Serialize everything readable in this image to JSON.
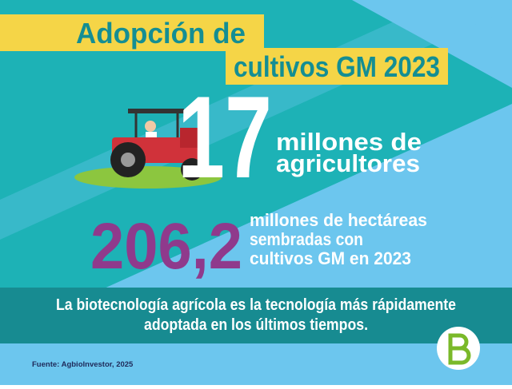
{
  "header": {
    "title_lines": [
      "Adopción de",
      "cultivos GM 2023"
    ]
  },
  "stat_farmers": {
    "number": "17",
    "label_lines": [
      "millones de",
      "agricultores"
    ]
  },
  "stat_hectares": {
    "number": "206,2",
    "label_lines": [
      "millones de hectáreas",
      "sembradas con",
      "cultivos GM en 2023"
    ]
  },
  "banner": {
    "lines": [
      "La biotecnología agrícola es la tecnología más rápidamente",
      "adoptada en los últimos tiempos."
    ]
  },
  "footer": {
    "source": "Fuente: AgbioInvestor, 2025"
  }
}
